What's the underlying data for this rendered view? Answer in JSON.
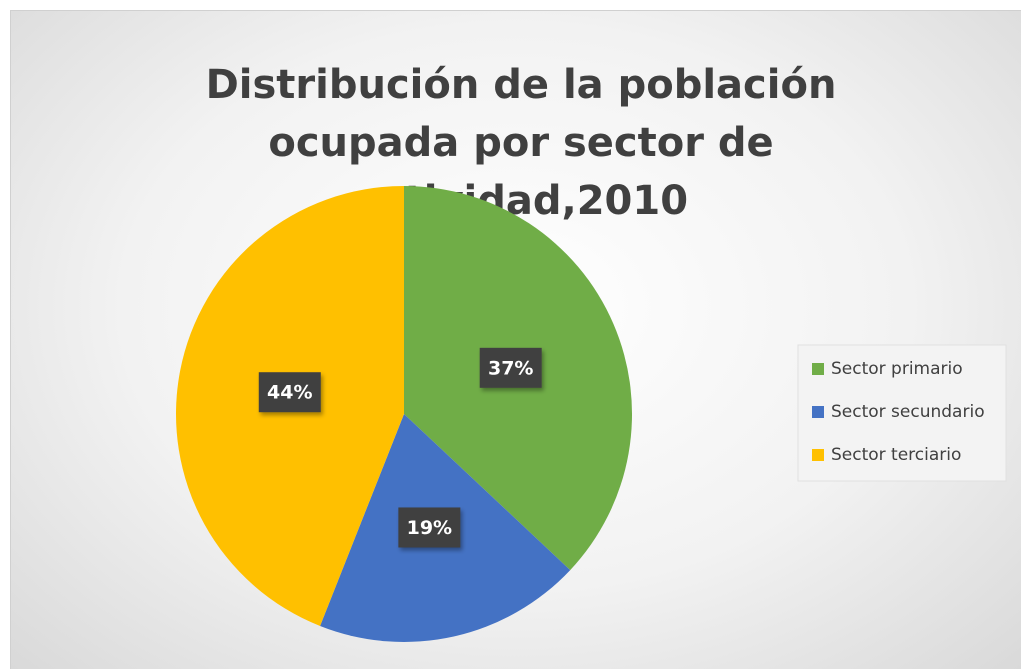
{
  "chart_data": {
    "type": "pie",
    "title": "Distribución de la población ocupada por sector de actividad,2010",
    "categories": [
      "Sector primario",
      "Sector secundario",
      "Sector terciario"
    ],
    "values": [
      37,
      19,
      44
    ],
    "value_labels": [
      "37%",
      "19%",
      "44%"
    ],
    "colors": [
      "#70ad47",
      "#4472c4",
      "#ffc000"
    ],
    "legend": "right"
  }
}
